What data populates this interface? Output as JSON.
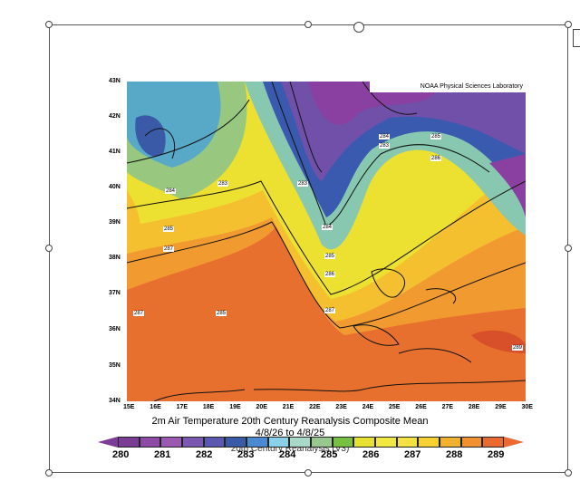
{
  "figure": {
    "credit": "NOAA Physical Sciences Laboratory",
    "title": "2m Air Temperature 20th Century Reanalysis Composite Mean",
    "subtitle": "4/8/26  to 4/8/25",
    "source": "20th Century Reanalysis (V3)",
    "lat_ticks": [
      "43N",
      "42N",
      "41N",
      "40N",
      "39N",
      "38N",
      "37N",
      "36N",
      "35N",
      "34N"
    ],
    "lon_ticks": [
      "15E",
      "16E",
      "17E",
      "18E",
      "19E",
      "20E",
      "21E",
      "22E",
      "23E",
      "24E",
      "25E",
      "26E",
      "27E",
      "28E",
      "29E",
      "30E"
    ],
    "colorbar_labels": [
      "280",
      "281",
      "282",
      "283",
      "284",
      "285",
      "286",
      "287",
      "288",
      "289"
    ],
    "colorbar_colors": [
      "#7b3c96",
      "#8d4aa6",
      "#9a5ab2",
      "#7a58b2",
      "#5a58b0",
      "#3a5aa8",
      "#4a8ad0",
      "#8ad0e8",
      "#a8d8c8",
      "#98c890",
      "#78c040",
      "#e8e030",
      "#f0e840",
      "#f4e040",
      "#f4d030",
      "#f0b030",
      "#f09030",
      "#e86a30"
    ],
    "contour_labels": [
      "284",
      "285",
      "287",
      "283",
      "287",
      "285",
      "283",
      "284",
      "285",
      "286",
      "287",
      "284",
      "283",
      "285",
      "286",
      "289"
    ]
  }
}
